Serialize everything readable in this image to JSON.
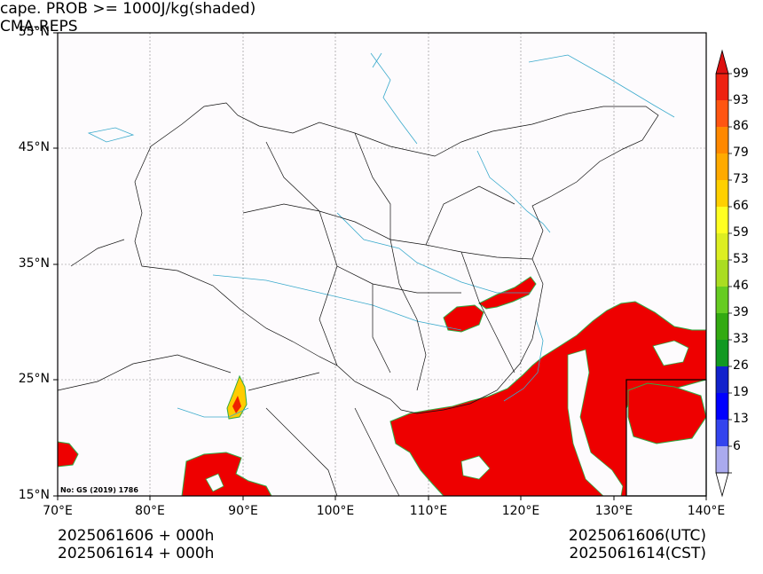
{
  "title_left": "cape. PROB >= 1000J/kg(shaded)",
  "title_right": "CMA-REPS",
  "lat_labels": [
    "55°N",
    "45°N",
    "35°N",
    "25°N",
    "15°N"
  ],
  "lon_labels": [
    "70°E",
    "80°E",
    "90°E",
    "100°E",
    "110°E",
    "120°E",
    "130°E",
    "140°E"
  ],
  "watermark": "No: GS (2019) 1786",
  "colorbar": {
    "levels": [
      "99",
      "93",
      "86",
      "79",
      "73",
      "66",
      "59",
      "53",
      "46",
      "39",
      "33",
      "26",
      "19",
      "13",
      "6"
    ],
    "colors": [
      "#ee2211",
      "#ff5511",
      "#ff8800",
      "#ffaa00",
      "#ffd000",
      "#ffff22",
      "#ddee22",
      "#aadd22",
      "#66cc22",
      "#33aa11",
      "#119922",
      "#1122cc",
      "#0000ff",
      "#3344ee",
      "#aaaaee"
    ],
    "over_color": "#dd1111",
    "under_color": "#ffffff"
  },
  "footer_left": [
    "2025061606  +  000h",
    "2025061614  +  000h"
  ],
  "footer_right": [
    "2025061606(UTC)",
    "2025061614(CST)"
  ],
  "colors": {
    "map_background": "#fdfbfd",
    "border": "#000000",
    "river": "#3aaacc",
    "grid": "#888888",
    "shade_main": "#ee0000"
  }
}
